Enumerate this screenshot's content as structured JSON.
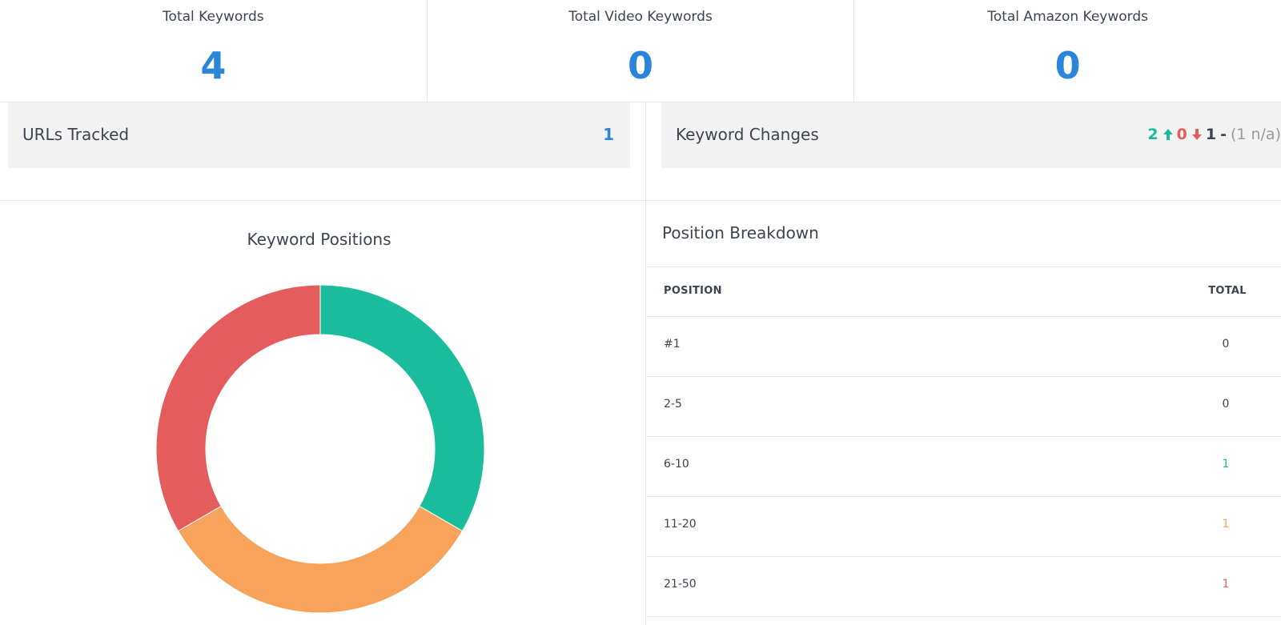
{
  "stats": [
    {
      "label": "Total Keywords",
      "value": "4"
    },
    {
      "label": "Total Video Keywords",
      "value": "0"
    },
    {
      "label": "Total Amazon Keywords",
      "value": "0"
    }
  ],
  "urls_tracked": {
    "label": "URLs Tracked",
    "value": "1"
  },
  "keyword_changes": {
    "label": "Keyword Changes",
    "up": "2",
    "down": "0",
    "same": "1",
    "separator": "-",
    "na": "(1 n/a)"
  },
  "chart_data": {
    "type": "pie",
    "title": "Keyword Positions",
    "donut": true,
    "slices": [
      {
        "label": "6-10",
        "value": 1,
        "color": "#1bbc9b"
      },
      {
        "label": "11-20",
        "value": 1,
        "color": "#f7a35c"
      },
      {
        "label": "21-50",
        "value": 1,
        "color": "#e55c5c"
      }
    ]
  },
  "breakdown": {
    "title": "Position Breakdown",
    "col_position": "POSITION",
    "col_total": "TOTAL",
    "rows": [
      {
        "position": "#1",
        "total": "0",
        "color": "#3d4451"
      },
      {
        "position": "2-5",
        "total": "0",
        "color": "#3d4451"
      },
      {
        "position": "6-10",
        "total": "1",
        "color": "#1bbc9b"
      },
      {
        "position": "11-20",
        "total": "1",
        "color": "#f7a35c"
      },
      {
        "position": "21-50",
        "total": "1",
        "color": "#e55c5c"
      }
    ]
  }
}
